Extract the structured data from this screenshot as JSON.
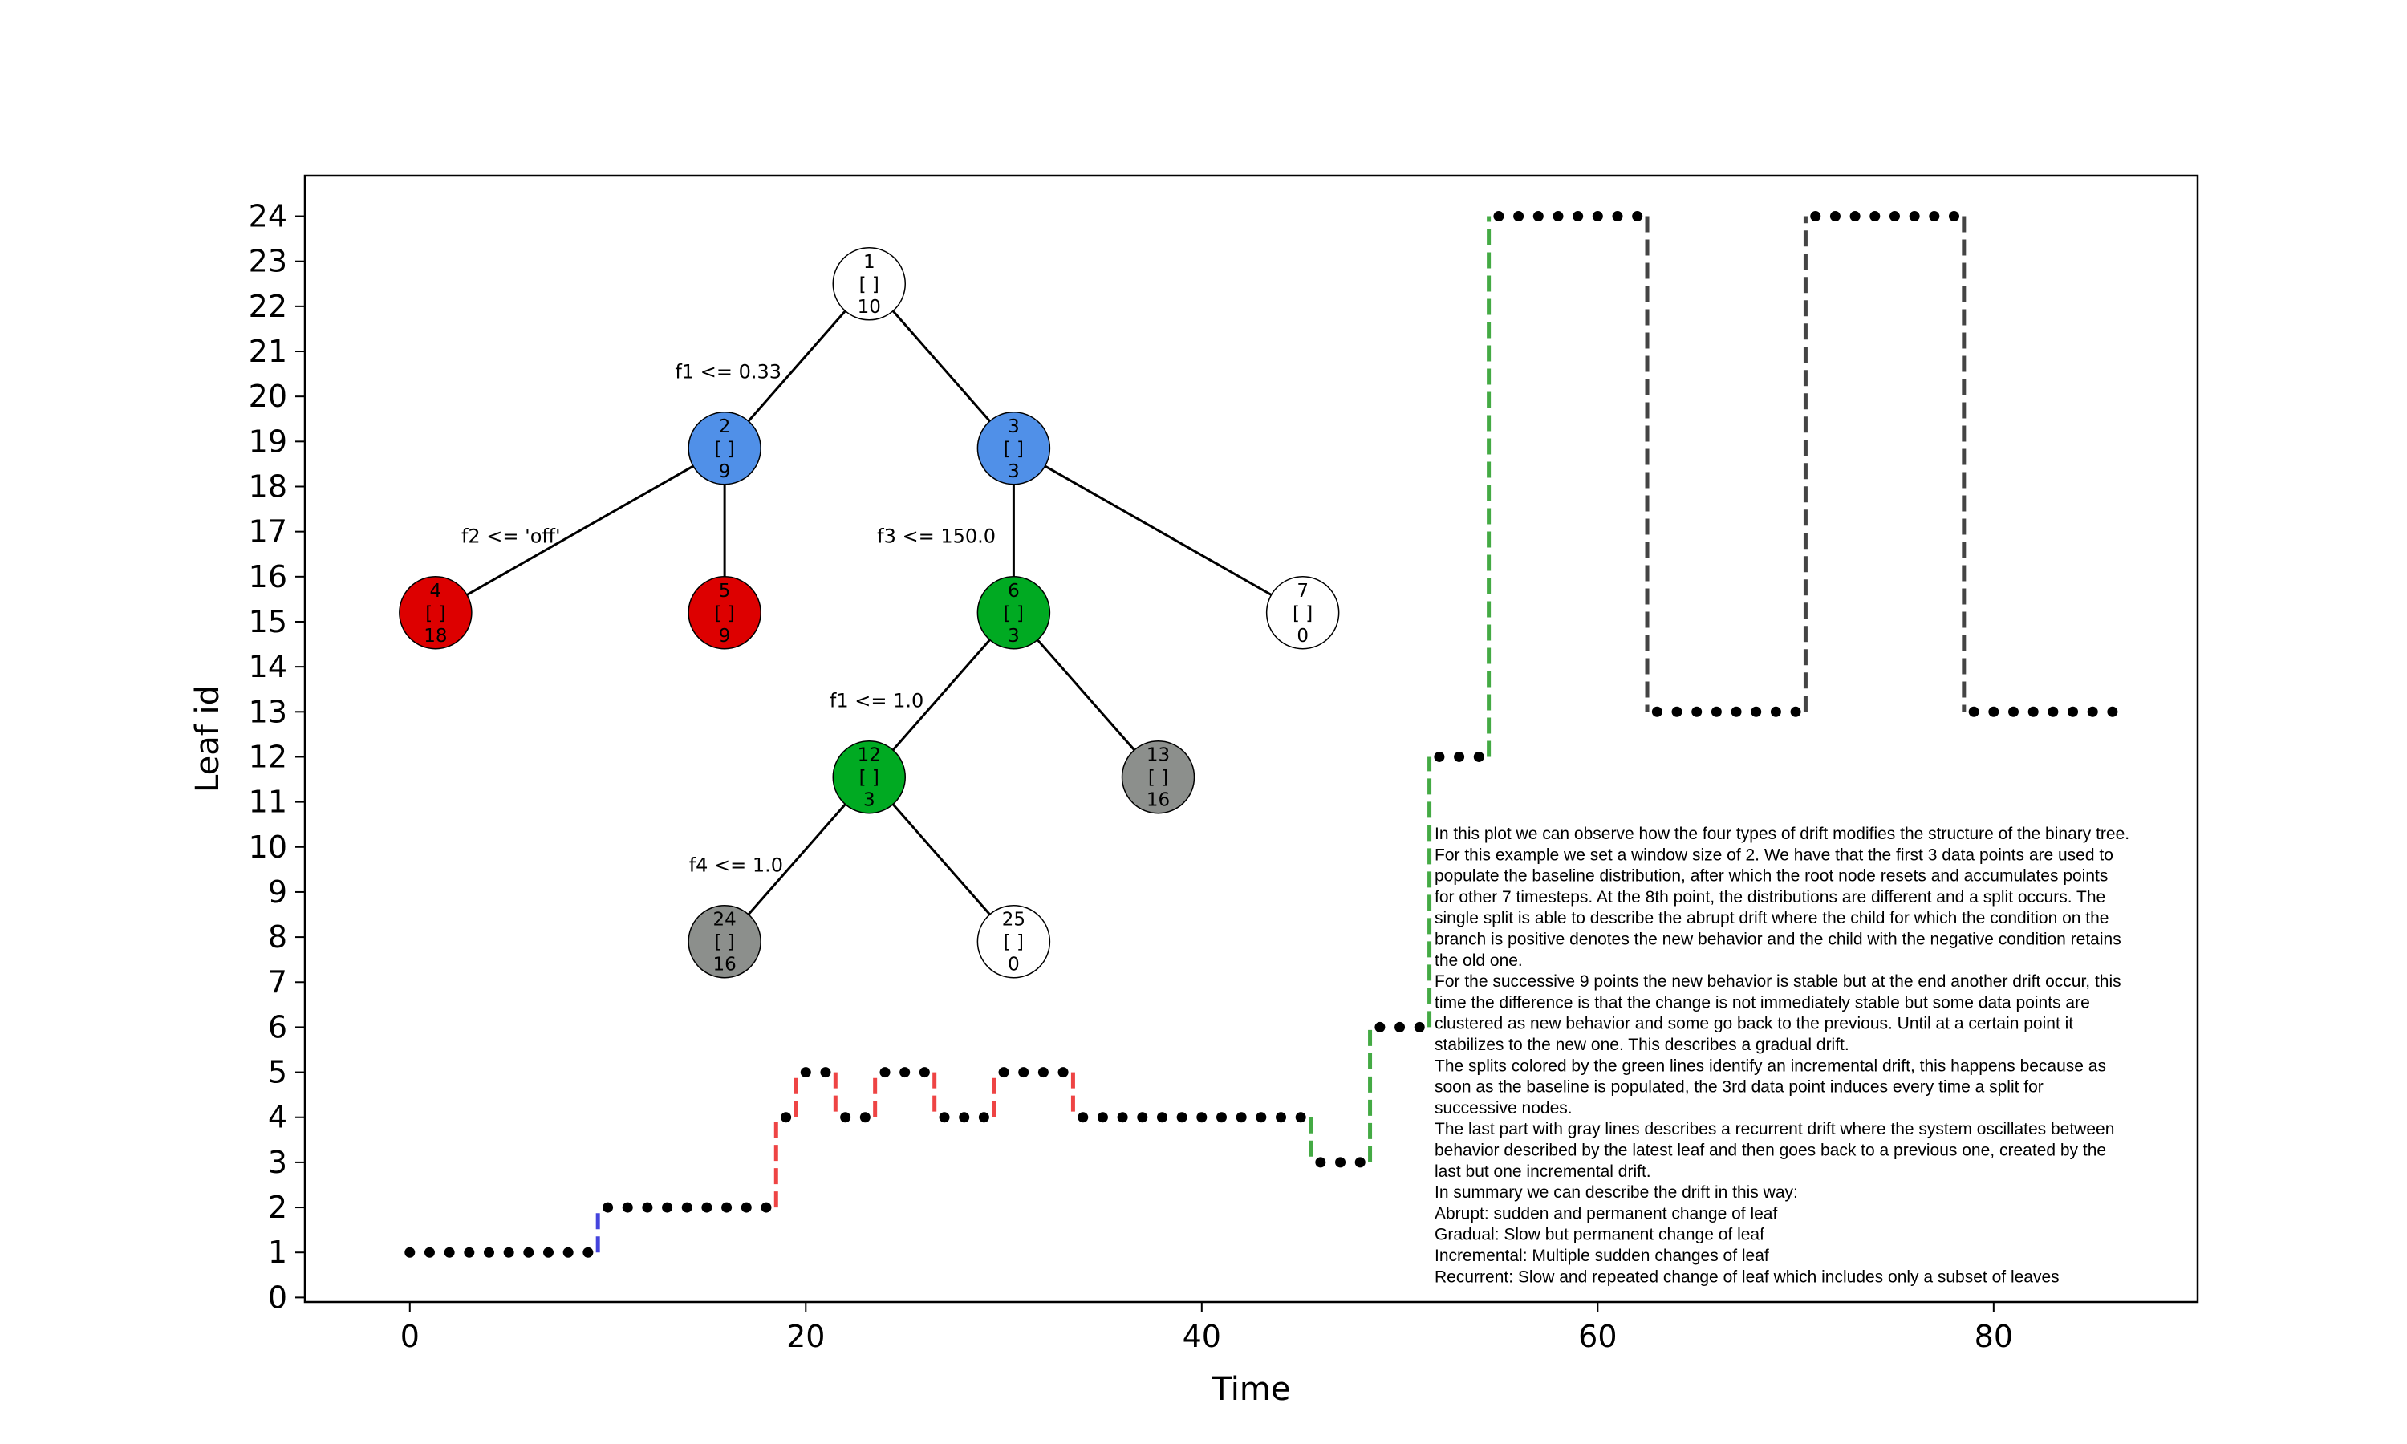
{
  "chart_data": {
    "type": "line",
    "xlabel": "Time",
    "ylabel": "Leaf id",
    "xlim": [
      -5.3,
      90.3
    ],
    "ylim": [
      -0.1,
      24.9
    ],
    "xticks": [
      0,
      20,
      40,
      60,
      80
    ],
    "yticks": [
      0,
      1,
      2,
      3,
      4,
      5,
      6,
      7,
      8,
      9,
      10,
      11,
      12,
      13,
      14,
      15,
      16,
      17,
      18,
      19,
      20,
      21,
      22,
      23,
      24
    ],
    "grid": false,
    "series": [
      {
        "x": [
          0,
          1,
          2,
          3,
          4,
          5,
          6,
          7,
          8,
          9,
          10,
          11,
          12,
          13,
          14,
          15,
          16,
          17,
          18,
          19,
          20,
          21,
          22,
          23,
          24,
          25,
          26,
          27,
          28,
          29,
          30,
          31,
          32,
          33,
          34,
          35,
          36,
          37,
          38,
          39,
          40,
          41,
          42,
          43,
          44,
          45,
          46,
          47,
          48,
          49,
          50,
          51,
          52,
          53,
          54,
          55,
          56,
          57,
          58,
          59,
          60,
          61,
          62,
          63,
          64,
          65,
          66,
          67,
          68,
          69,
          70,
          71,
          72,
          73,
          74,
          75,
          76,
          77,
          78,
          79,
          80,
          81,
          82,
          83,
          84,
          85,
          86
        ],
        "values": [
          1,
          1,
          1,
          1,
          1,
          1,
          1,
          1,
          1,
          1,
          2,
          2,
          2,
          2,
          2,
          2,
          2,
          2,
          2,
          4,
          5,
          5,
          4,
          4,
          5,
          5,
          5,
          4,
          4,
          4,
          5,
          5,
          5,
          5,
          4,
          4,
          4,
          4,
          4,
          4,
          4,
          4,
          4,
          4,
          4,
          4,
          3,
          3,
          3,
          6,
          6,
          6,
          12,
          12,
          12,
          24,
          24,
          24,
          24,
          24,
          24,
          24,
          24,
          13,
          13,
          13,
          13,
          13,
          13,
          13,
          13,
          24,
          24,
          24,
          24,
          24,
          24,
          24,
          24,
          13,
          13,
          13,
          13,
          13,
          13,
          13,
          13
        ]
      }
    ],
    "drift_lines": [
      {
        "x": 9.5,
        "from": 1,
        "to": 2,
        "color": "#4444dd"
      },
      {
        "x": 18.5,
        "from": 2,
        "to": 4,
        "color": "#ee4444"
      },
      {
        "x": 19.5,
        "from": 4,
        "to": 5,
        "color": "#ee4444"
      },
      {
        "x": 21.5,
        "from": 5,
        "to": 4,
        "color": "#ee4444"
      },
      {
        "x": 23.5,
        "from": 4,
        "to": 5,
        "color": "#ee4444"
      },
      {
        "x": 26.5,
        "from": 5,
        "to": 4,
        "color": "#ee4444"
      },
      {
        "x": 29.5,
        "from": 4,
        "to": 5,
        "color": "#ee4444"
      },
      {
        "x": 33.5,
        "from": 5,
        "to": 4,
        "color": "#ee4444"
      },
      {
        "x": 45.5,
        "from": 4,
        "to": 3,
        "color": "#44aa44"
      },
      {
        "x": 48.5,
        "from": 3,
        "to": 6,
        "color": "#44aa44"
      },
      {
        "x": 51.5,
        "from": 6,
        "to": 12,
        "color": "#44aa44"
      },
      {
        "x": 54.5,
        "from": 12,
        "to": 24,
        "color": "#44aa44"
      },
      {
        "x": 62.5,
        "from": 24,
        "to": 13,
        "color": "#444444"
      },
      {
        "x": 70.5,
        "from": 13,
        "to": 24,
        "color": "#444444"
      },
      {
        "x": 78.5,
        "from": 24,
        "to": 13,
        "color": "#444444"
      }
    ],
    "tree": {
      "nodes": [
        {
          "id": "1",
          "x": 23.2,
          "y": 22.5,
          "bracket": "[ ]",
          "count": "10",
          "color": "#ffffff"
        },
        {
          "id": "2",
          "x": 15.9,
          "y": 18.85,
          "bracket": "[ ]",
          "count": "9",
          "color": "#5090e8"
        },
        {
          "id": "3",
          "x": 30.5,
          "y": 18.85,
          "bracket": "[ ]",
          "count": "3",
          "color": "#5090e8"
        },
        {
          "id": "4",
          "x": 1.3,
          "y": 15.2,
          "bracket": "[ ]",
          "count": "18",
          "color": "#dd0000"
        },
        {
          "id": "5",
          "x": 15.9,
          "y": 15.2,
          "bracket": "[ ]",
          "count": "9",
          "color": "#dd0000"
        },
        {
          "id": "6",
          "x": 30.5,
          "y": 15.2,
          "bracket": "[ ]",
          "count": "3",
          "color": "#00aa22"
        },
        {
          "id": "7",
          "x": 45.1,
          "y": 15.2,
          "bracket": "[ ]",
          "count": "0",
          "color": "#ffffff"
        },
        {
          "id": "12",
          "x": 23.2,
          "y": 11.55,
          "bracket": "[ ]",
          "count": "3",
          "color": "#00aa22"
        },
        {
          "id": "13",
          "x": 37.8,
          "y": 11.55,
          "bracket": "[ ]",
          "count": "16",
          "color": "#8c8f8c"
        },
        {
          "id": "24",
          "x": 15.9,
          "y": 7.9,
          "bracket": "[ ]",
          "count": "16",
          "color": "#8c8f8c"
        },
        {
          "id": "25",
          "x": 30.5,
          "y": 7.9,
          "bracket": "[ ]",
          "count": "0",
          "color": "#ffffff"
        }
      ],
      "edges": [
        [
          "1",
          "2"
        ],
        [
          "1",
          "3"
        ],
        [
          "2",
          "4"
        ],
        [
          "2",
          "5"
        ],
        [
          "3",
          "6"
        ],
        [
          "3",
          "7"
        ],
        [
          "6",
          "12"
        ],
        [
          "6",
          "13"
        ],
        [
          "12",
          "24"
        ],
        [
          "12",
          "25"
        ]
      ],
      "conditions": [
        {
          "text": "f1  <= 0.33",
          "x": 13.4,
          "y": 20.4
        },
        {
          "text": "f2  <=  'off'",
          "x": 2.6,
          "y": 16.75
        },
        {
          "text": "f3  <= 150.0",
          "x": 23.6,
          "y": 16.75
        },
        {
          "text": "f1  <= 1.0",
          "x": 21.2,
          "y": 13.1
        },
        {
          "text": "f4  <= 1.0",
          "x": 14.1,
          "y": 9.45
        }
      ]
    },
    "annotation_lines": [
      "In this plot we can observe how the four types of drift modifies the structure of the binary tree.",
      "For this example we set a window size of 2. We have that the first 3 data points are used to",
      "populate the baseline distribution, after which the root node resets and accumulates points",
      "for other 7 timesteps. At the 8th point, the distributions are different and a split occurs. The",
      "single split is able to describe the abrupt drift where the child for which the condition on the",
      "branch is positive denotes the new behavior and the child with the negative condition retains",
      "the old one.",
      "For the successive 9 points the new behavior is stable but at the end another drift occur, this",
      "time the difference is that the change is not immediately stable but some data points are",
      "clustered as new behavior and some go back to the previous. Until at a certain point it",
      "stabilizes to the new one. This describes a gradual drift.",
      "The splits colored by the green lines identify an incremental drift, this happens because as",
      "soon as the baseline is populated, the 3rd data point induces every time a split for",
      "successive nodes.",
      "The last part with gray lines describes a recurrent drift where the system oscillates between",
      "behavior described by the latest leaf and then goes back to a previous one, created by the",
      "last but one incremental drift.",
      "In summary we can describe the drift in this way:",
      "Abrupt: sudden and permanent change of leaf",
      "Gradual: Slow but permanent change of leaf",
      "Incremental: Multiple sudden changes of leaf",
      "Recurrent: Slow and repeated change of leaf which includes only a subset of leaves"
    ]
  }
}
